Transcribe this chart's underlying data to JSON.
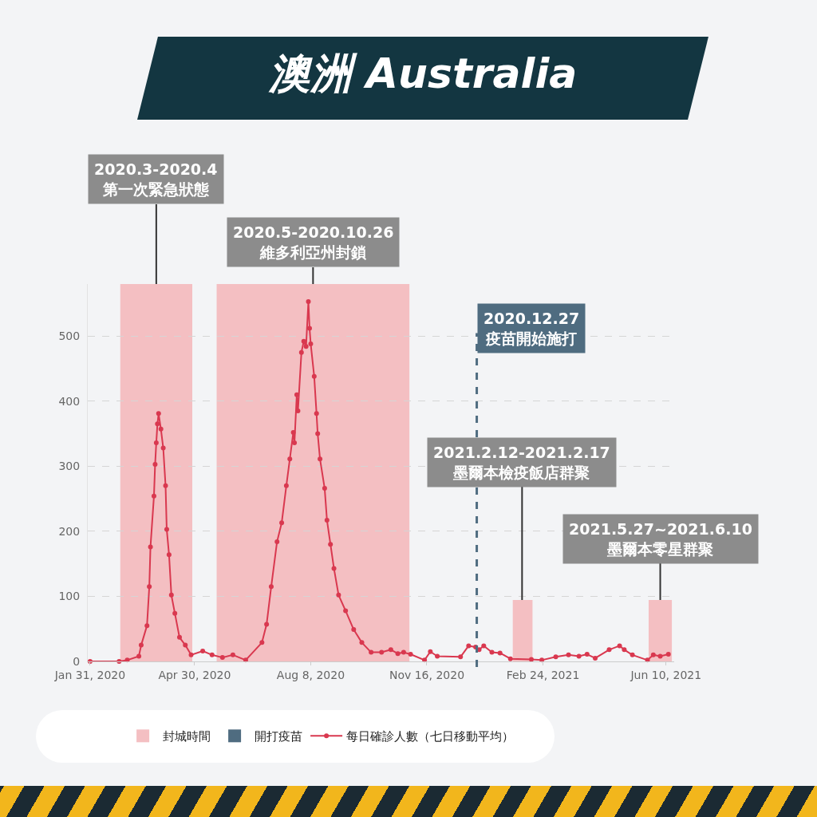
{
  "chart_data": {
    "type": "line",
    "title": "澳洲 Australia",
    "x": [
      "2020-01-31",
      "2020-02-25",
      "2020-03-03",
      "2020-03-13",
      "2020-03-15",
      "2020-03-20",
      "2020-03-22",
      "2020-03-23",
      "2020-03-26",
      "2020-03-27",
      "2020-03-28",
      "2020-03-29",
      "2020-03-30",
      "2020-04-01",
      "2020-04-03",
      "2020-04-05",
      "2020-04-06",
      "2020-04-08",
      "2020-04-10",
      "2020-04-13",
      "2020-04-17",
      "2020-04-22",
      "2020-04-27",
      "2020-05-07",
      "2020-05-15",
      "2020-05-24",
      "2020-06-02",
      "2020-06-13",
      "2020-06-27",
      "2020-07-01",
      "2020-07-05",
      "2020-07-10",
      "2020-07-14",
      "2020-07-18",
      "2020-07-21",
      "2020-07-24",
      "2020-07-25",
      "2020-07-27",
      "2020-07-28",
      "2020-07-31",
      "2020-08-02",
      "2020-08-04",
      "2020-08-06",
      "2020-08-07",
      "2020-08-08",
      "2020-08-11",
      "2020-08-13",
      "2020-08-14",
      "2020-08-16",
      "2020-08-20",
      "2020-08-22",
      "2020-08-25",
      "2020-08-28",
      "2020-09-01",
      "2020-09-07",
      "2020-09-14",
      "2020-09-21",
      "2020-09-29",
      "2020-10-08",
      "2020-10-16",
      "2020-10-22",
      "2020-10-27",
      "2020-11-02",
      "2020-11-14",
      "2020-11-19",
      "2020-11-25",
      "2020-12-15",
      "2020-12-22",
      "2020-12-28",
      "2020-12-31",
      "2021-01-04",
      "2021-01-11",
      "2021-01-18",
      "2021-01-27",
      "2021-02-14",
      "2021-02-23",
      "2021-03-07",
      "2021-03-18",
      "2021-03-27",
      "2021-04-03",
      "2021-04-10",
      "2021-04-22",
      "2021-05-01",
      "2021-05-05",
      "2021-05-12",
      "2021-05-25",
      "2021-05-30",
      "2021-06-05",
      "2021-06-12"
    ],
    "series": [
      {
        "name": "每日確診人數（七日移動平均）",
        "color": "#d9384f",
        "values": [
          0,
          0,
          2,
          8,
          25,
          55,
          115,
          176,
          254,
          303,
          336,
          365,
          381,
          357,
          328,
          270,
          203,
          164,
          102,
          74,
          37,
          25,
          10,
          16,
          10,
          6,
          10,
          2,
          29,
          57,
          115,
          184,
          213,
          270,
          311,
          352,
          336,
          410,
          385,
          475,
          492,
          484,
          553,
          512,
          488,
          438,
          381,
          350,
          311,
          266,
          217,
          180,
          143,
          102,
          78,
          49,
          29,
          14,
          14,
          18,
          12,
          14,
          11,
          2,
          15,
          8,
          7,
          24,
          22,
          18,
          24,
          14,
          13,
          4,
          3,
          2,
          7,
          10,
          8,
          11,
          5,
          18,
          24,
          18,
          10,
          2,
          10,
          8,
          11
        ]
      }
    ],
    "xlim": [
      "2020-01-29",
      "2021-06-17"
    ],
    "xticks": [
      {
        "value": "2020-01-31",
        "label": "Jan 31, 2020"
      },
      {
        "value": "2020-04-30",
        "label": "Apr 30, 2020"
      },
      {
        "value": "2020-08-08",
        "label": "Aug 8, 2020"
      },
      {
        "value": "2020-11-16",
        "label": "Nov 16, 2020"
      },
      {
        "value": "2021-02-24",
        "label": "Feb 24, 2021"
      },
      {
        "value": "2021-06-10",
        "label": "Jun 10, 2021"
      }
    ],
    "ylim": [
      0,
      580
    ],
    "yticks": [
      0,
      100,
      200,
      300,
      400,
      500
    ],
    "grid": "y",
    "marker": "circle",
    "line_style": "solid",
    "legend": "bottom",
    "bands": [
      {
        "axis": "x",
        "from": "2020-02-26",
        "to": "2020-04-28",
        "label": "2020.3-2020.4\n第一次緊急狀態",
        "color": "#f4bfc2"
      },
      {
        "axis": "x",
        "from": "2020-05-19",
        "to": "2020-11-01",
        "label": "2020.5-2020.10.26\n維多利亞州封鎖",
        "color": "#f4bfc2"
      },
      {
        "axis": "x",
        "from": "2021-01-29",
        "to": "2021-02-15",
        "label": "2021.2.12-2021.2.17\n墨爾本檢疫飯店群聚",
        "color": "#f4bfc2"
      },
      {
        "axis": "x",
        "from": "2021-05-26",
        "to": "2021-06-15",
        "label": "2021.5.27~2021.6.10\n墨爾本零星群聚",
        "color": "#f4bfc2"
      }
    ],
    "ref_lines": [
      {
        "axis": "x",
        "value": "2020-12-29",
        "label": "2020.12.27\n疫苗開始施打",
        "color": "#4f6c80",
        "line_style": "dashed"
      }
    ],
    "annotations": [
      "封城時間",
      "開打疫苗"
    ]
  }
}
